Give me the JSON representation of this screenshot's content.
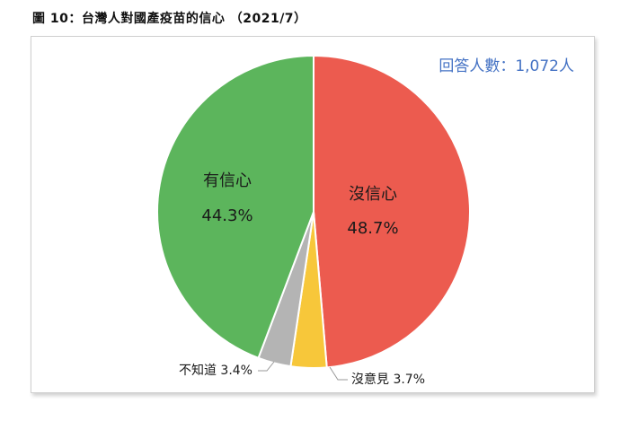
{
  "figure_title": "圖 10：台灣人對國產疫苗的信心 （2021/7）",
  "respondents_note": "回答人數：1,072人",
  "chart_data": {
    "type": "pie",
    "title": "",
    "start_angle_deg": 0,
    "direction": "clockwise",
    "slices": [
      {
        "label": "沒信心",
        "value": 48.7,
        "value_label": "48.7%",
        "color": "#ec5b4f"
      },
      {
        "label": "沒意見",
        "value": 3.7,
        "value_label": "3.7%",
        "color": "#f7c73a"
      },
      {
        "label": "不知道",
        "value": 3.4,
        "value_label": "3.4%",
        "color": "#b4b4b4"
      },
      {
        "label": "有信心",
        "value": 44.3,
        "value_label": "44.3%",
        "color": "#5cb55c"
      }
    ],
    "legend": "none"
  }
}
